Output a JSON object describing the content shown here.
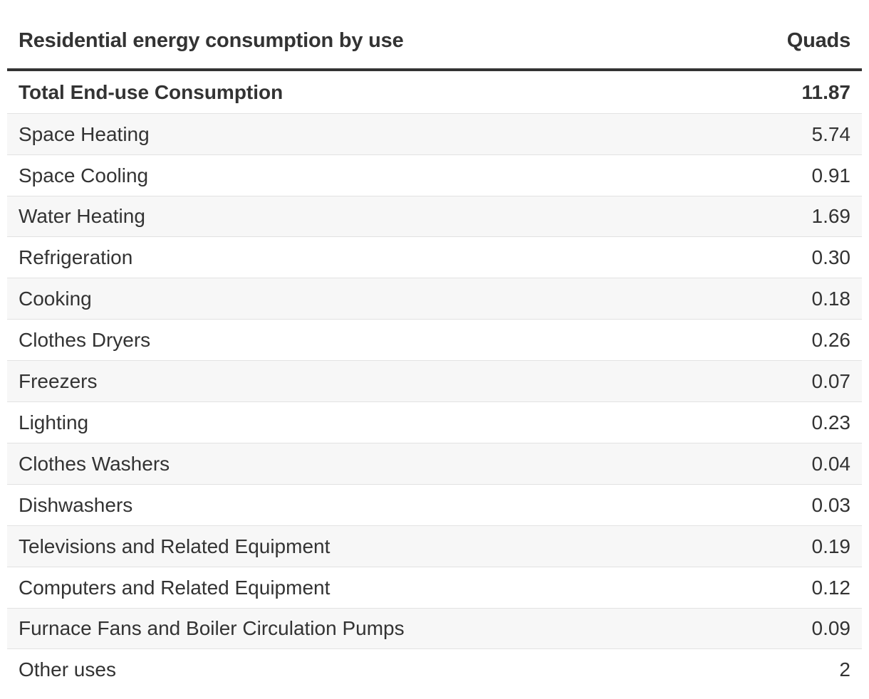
{
  "chart_data": {
    "type": "table",
    "title": "",
    "columns": [
      "Residential energy consumption by use",
      "Quads"
    ],
    "rows": [
      {
        "label": "Total End-use Consumption",
        "value": "11.87",
        "total": true
      },
      {
        "label": "Space Heating",
        "value": "5.74"
      },
      {
        "label": "Space Cooling",
        "value": "0.91"
      },
      {
        "label": "Water Heating",
        "value": "1.69"
      },
      {
        "label": "Refrigeration",
        "value": "0.30"
      },
      {
        "label": "Cooking",
        "value": "0.18"
      },
      {
        "label": "Clothes Dryers",
        "value": "0.26"
      },
      {
        "label": "Freezers",
        "value": "0.07"
      },
      {
        "label": "Lighting",
        "value": "0.23"
      },
      {
        "label": "Clothes Washers",
        "value": "0.04"
      },
      {
        "label": "Dishwashers",
        "value": "0.03"
      },
      {
        "label": "Televisions and Related Equipment",
        "value": "0.19"
      },
      {
        "label": "Computers and Related Equipment",
        "value": "0.12"
      },
      {
        "label": "Furnace Fans and Boiler Circulation Pumps",
        "value": "0.09"
      },
      {
        "label": "Other uses",
        "value": "2"
      }
    ]
  },
  "colors": {
    "text": "#333333",
    "header_rule": "#333333",
    "row_divider": "#e2e2e2",
    "shaded_row": "#f7f7f7",
    "background": "#ffffff"
  }
}
